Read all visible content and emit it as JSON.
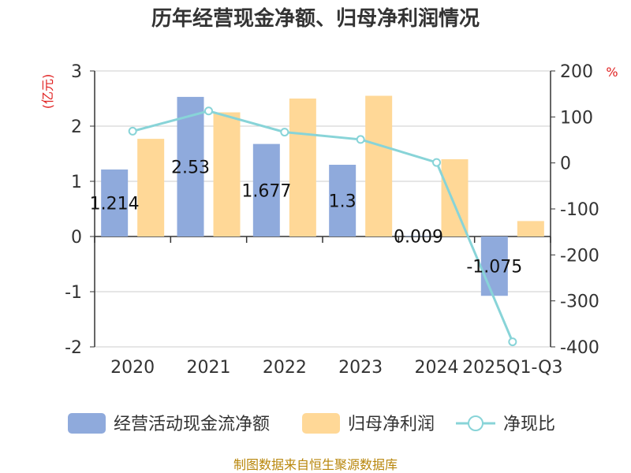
{
  "chart_data": {
    "type": "bar",
    "title": "历年经营现金净额、归母净利润情况",
    "left_axis_unit": "(亿元)",
    "right_axis_unit": "%",
    "categories": [
      "2020",
      "2021",
      "2022",
      "2023",
      "2024",
      "2025Q1-Q3"
    ],
    "left_ylim": [
      -2,
      3
    ],
    "left_ticks": [
      "3",
      "2",
      "1",
      "0",
      "-1",
      "-2"
    ],
    "left_tick_values": [
      3,
      2,
      1,
      0,
      -1,
      -2
    ],
    "right_ylim": [
      -400,
      200
    ],
    "right_ticks": [
      "200",
      "100",
      "0",
      "-100",
      "-200",
      "-300",
      "-400"
    ],
    "right_tick_values": [
      200,
      100,
      0,
      -100,
      -200,
      -300,
      -400
    ],
    "grid": true,
    "legend_position": "bottom",
    "series": [
      {
        "name": "经营活动现金流净额",
        "type": "bar",
        "axis": "left",
        "color": "#8faadc",
        "values": [
          1.214,
          2.53,
          1.677,
          1.3,
          0.009,
          -1.075
        ],
        "labels": [
          "1.214",
          "2.53",
          "1.677",
          "1.3",
          "0.009",
          "-1.075"
        ]
      },
      {
        "name": "归母净利润",
        "type": "bar",
        "axis": "left",
        "color": "#ffd897",
        "values": [
          1.77,
          2.25,
          2.5,
          2.55,
          1.4,
          0.28
        ]
      },
      {
        "name": "净现比",
        "type": "line",
        "axis": "right",
        "color": "#88d4d8",
        "values": [
          69,
          113,
          67,
          51,
          1,
          -389
        ]
      }
    ],
    "source_note": "制图数据来自恒生聚源数据库"
  }
}
